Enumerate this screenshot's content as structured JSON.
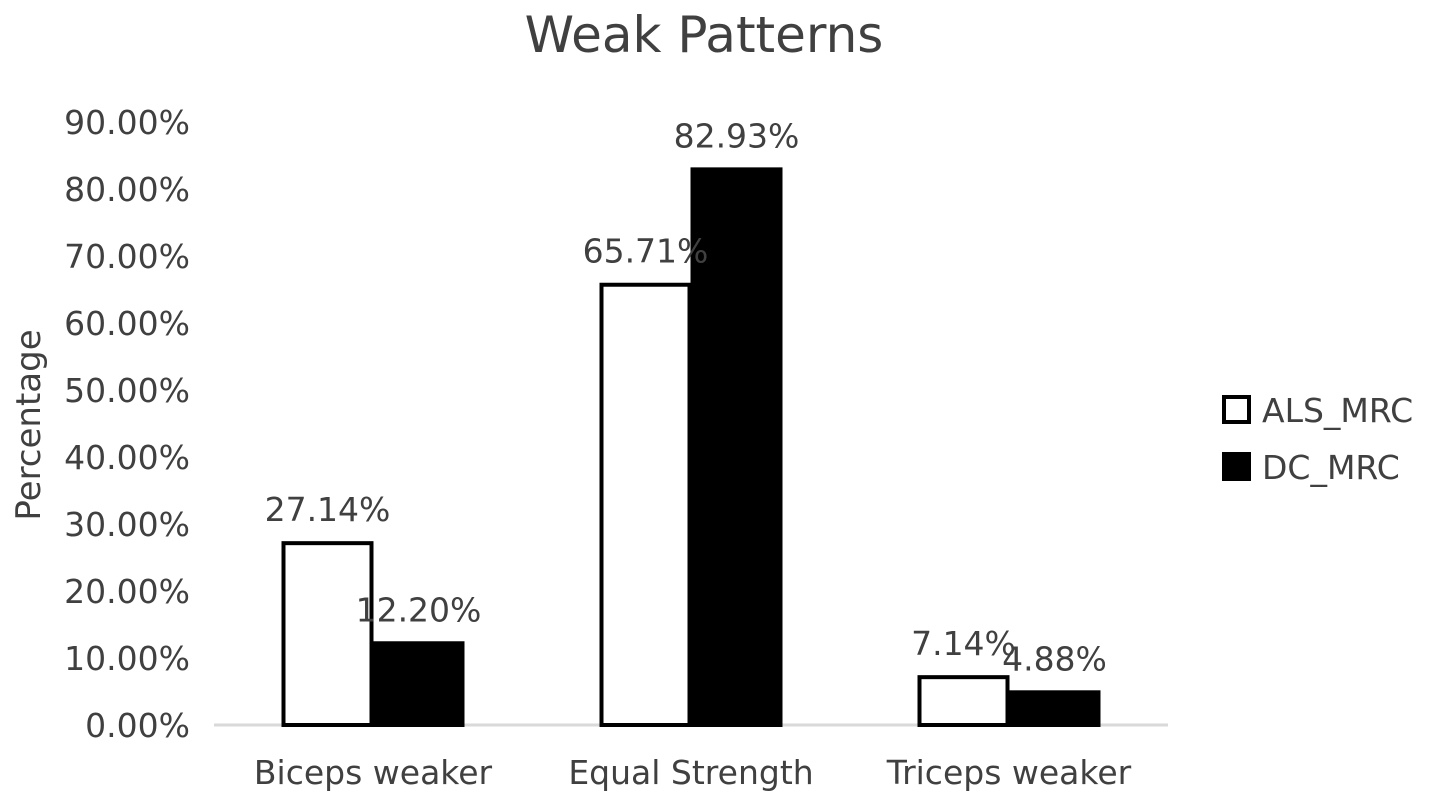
{
  "chart_data": {
    "type": "bar",
    "title": "Weak Patterns",
    "xlabel": "",
    "ylabel": "Percentage",
    "categories": [
      "Biceps weaker",
      "Equal Strength",
      "Triceps weaker"
    ],
    "series": [
      {
        "name": "ALS_MRC",
        "color": "#ffffff",
        "values": [
          27.14,
          65.71,
          7.14
        ],
        "labels": [
          "27.14%",
          "65.71%",
          "7.14%"
        ]
      },
      {
        "name": "DC_MRC",
        "color": "#000000",
        "values": [
          12.2,
          82.93,
          4.88
        ],
        "labels": [
          "12.20%",
          "82.93%",
          "4.88%"
        ]
      }
    ],
    "ylim": [
      0,
      90
    ],
    "yticks": [
      0,
      10,
      20,
      30,
      40,
      50,
      60,
      70,
      80,
      90
    ],
    "ytick_labels": [
      "0.00%",
      "10.00%",
      "20.00%",
      "30.00%",
      "40.00%",
      "50.00%",
      "60.00%",
      "70.00%",
      "80.00%",
      "90.00%"
    ],
    "grid": false,
    "legend_position": "right",
    "bar_outline_color": "#000000",
    "axis_color": "#d9d9d9"
  }
}
